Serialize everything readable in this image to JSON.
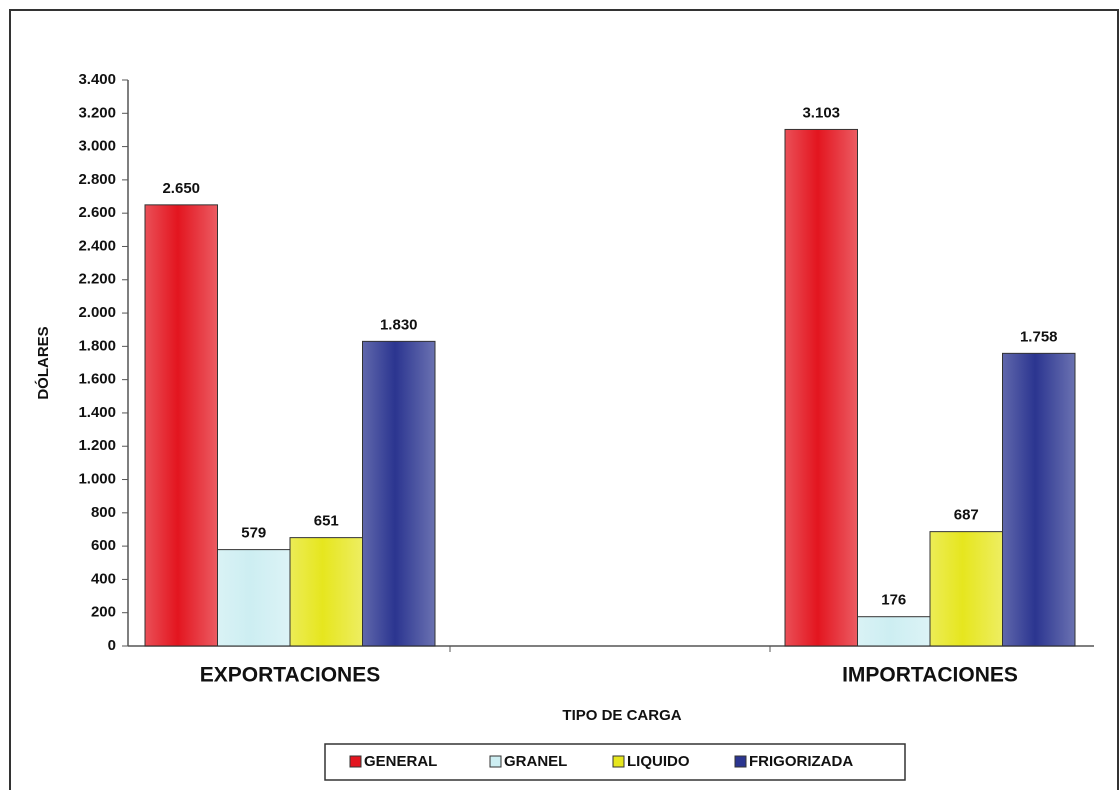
{
  "chart_data": {
    "type": "bar",
    "x_label": "TIPO DE CARGA",
    "y_label": "DÓLARES",
    "categories": [
      "EXPORTACIONES",
      "IMPORTACIONES"
    ],
    "series": [
      {
        "name": "GENERAL",
        "color": "#e3151f",
        "values": [
          2650,
          3103
        ],
        "value_labels": [
          "2.650",
          "3.103"
        ]
      },
      {
        "name": "GRANEL",
        "color": "#cdeef2",
        "values": [
          579,
          176
        ],
        "value_labels": [
          "579",
          "176"
        ]
      },
      {
        "name": "LIQUIDO",
        "color": "#e6e61e",
        "values": [
          651,
          687
        ],
        "value_labels": [
          "651",
          "687"
        ]
      },
      {
        "name": "FRIGORIZADA",
        "color": "#2b3590",
        "values": [
          1830,
          1758
        ],
        "value_labels": [
          "1.830",
          "1.758"
        ]
      }
    ],
    "ylim": [
      0,
      3400
    ],
    "yticks": [
      0,
      200,
      400,
      600,
      800,
      {
        "value": 1000,
        "label": "1.000"
      },
      {
        "value": 1200,
        "label": "1.200"
      },
      {
        "value": 1400,
        "label": "1.400"
      },
      {
        "value": 1600,
        "label": "1.600"
      },
      {
        "value": 1800,
        "label": "1.800"
      },
      {
        "value": 2000,
        "label": "2.000"
      },
      {
        "value": 2200,
        "label": "2.200"
      },
      {
        "value": 2400,
        "label": "2.400"
      },
      {
        "value": 2600,
        "label": "2.600"
      },
      {
        "value": 2800,
        "label": "2.800"
      },
      {
        "value": 3000,
        "label": "3.000"
      },
      {
        "value": 3200,
        "label": "3.200"
      },
      {
        "value": 3400,
        "label": "3.400"
      }
    ],
    "legend": "bottom",
    "grid": false
  }
}
